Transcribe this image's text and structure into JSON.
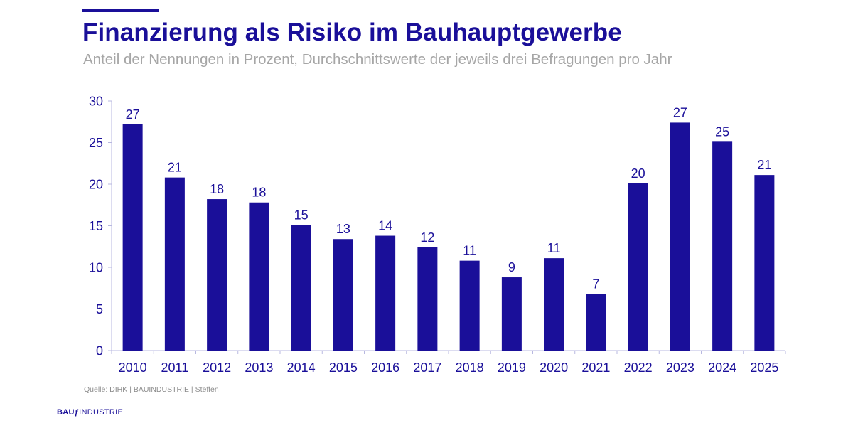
{
  "header": {
    "title": "Finanzierung als Risiko im Bauhauptgewerbe",
    "subtitle": "Anteil der Nennungen in Prozent, Durchschnittswerte der jeweils drei Befragungen pro Jahr"
  },
  "footer": {
    "source": "Quelle: DIHK | BAUINDUSTRIE | Steffen",
    "logo_text_bold": "BAU",
    "logo_sep": "ƒ",
    "logo_text": "INDUSTRIE"
  },
  "colors": {
    "accent": "#1a0f99",
    "bar": "#1a0f99",
    "subtitle": "#a6a6a6",
    "axis": "#b8b8e0"
  },
  "chart_data": {
    "type": "bar",
    "title": "Finanzierung als Risiko im Bauhauptgewerbe",
    "categories": [
      "2010",
      "2011",
      "2012",
      "2013",
      "2014",
      "2015",
      "2016",
      "2017",
      "2018",
      "2019",
      "2020",
      "2021",
      "2022",
      "2023",
      "2024",
      "2025"
    ],
    "values": [
      27.2,
      20.8,
      18.2,
      17.8,
      15.1,
      13.4,
      13.8,
      12.4,
      10.8,
      8.8,
      11.1,
      6.8,
      20.1,
      27.4,
      25.1,
      21.1
    ],
    "labels": [
      "27",
      "21",
      "18",
      "18",
      "15",
      "13",
      "14",
      "12",
      "11",
      "9",
      "11",
      "7",
      "20",
      "27",
      "25",
      "21"
    ],
    "yticks": [
      0,
      5,
      10,
      15,
      20,
      25,
      30
    ],
    "ylim": [
      0,
      30
    ],
    "xlabel": "",
    "ylabel": "",
    "grid": false,
    "legend": "none"
  }
}
